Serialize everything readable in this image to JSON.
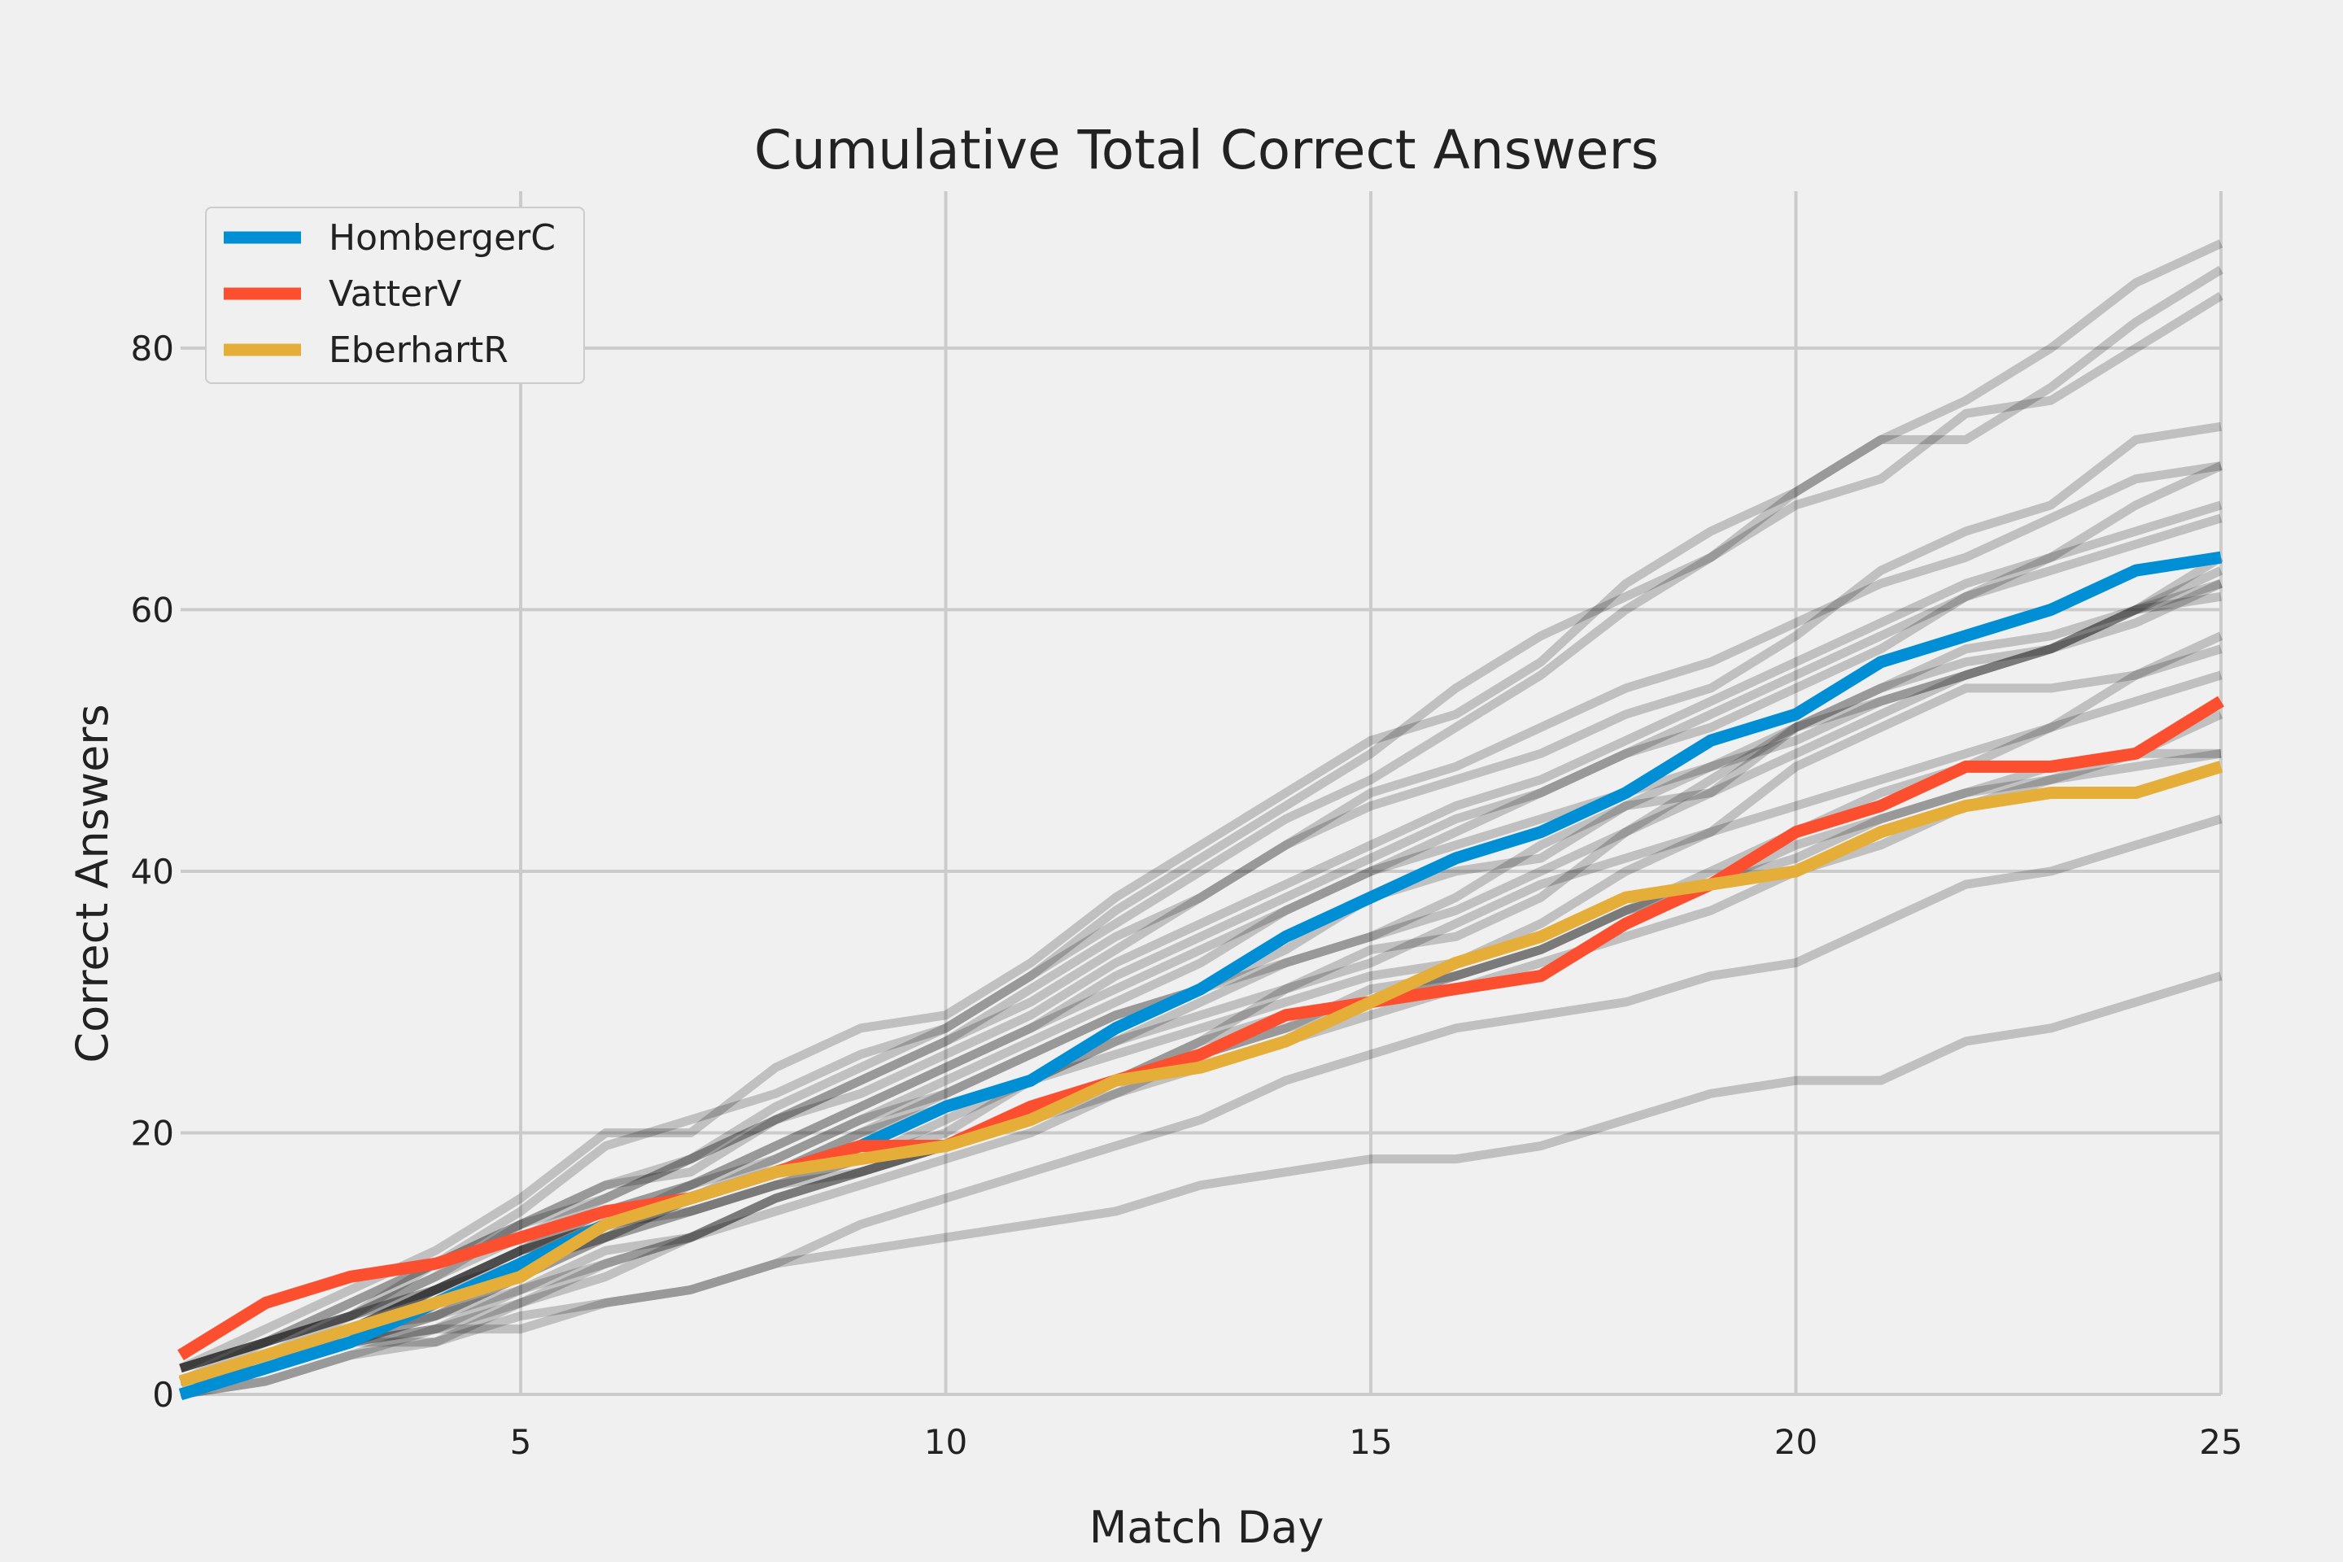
{
  "chart_data": {
    "type": "line",
    "title": "Cumulative Total Correct Answers",
    "xlabel": "Match Day",
    "ylabel": "Correct Answers",
    "xlim": [
      1,
      25
    ],
    "ylim": [
      0,
      92
    ],
    "xticks": [
      5,
      10,
      15,
      20,
      25
    ],
    "yticks": [
      0,
      20,
      40,
      60,
      80
    ],
    "grid": true,
    "legend_position": "top-left",
    "x": [
      1,
      2,
      3,
      4,
      5,
      6,
      7,
      8,
      9,
      10,
      11,
      12,
      13,
      14,
      15,
      16,
      17,
      18,
      19,
      20,
      21,
      22,
      23,
      24,
      25
    ],
    "series": [
      {
        "name": "HombergerC",
        "color": "#008fd5",
        "values": [
          0,
          2,
          4,
          7,
          10,
          13,
          15,
          17,
          19,
          22,
          24,
          28,
          31,
          35,
          38,
          41,
          43,
          46,
          50,
          52,
          56,
          58,
          60,
          63,
          64
        ]
      },
      {
        "name": "VatterV",
        "color": "#fc4f30",
        "values": [
          3,
          7,
          9,
          10,
          12,
          14,
          15,
          17,
          19,
          19,
          22,
          24,
          26,
          29,
          30,
          31,
          32,
          36,
          39,
          43,
          45,
          48,
          48,
          49,
          53
        ]
      },
      {
        "name": "EberhartR",
        "color": "#e5ae38",
        "values": [
          1,
          3,
          5,
          7,
          9,
          13,
          15,
          17,
          18,
          19,
          21,
          24,
          25,
          27,
          30,
          33,
          35,
          38,
          39,
          40,
          43,
          45,
          46,
          46,
          48
        ]
      }
    ],
    "background_series": [
      [
        2,
        5,
        8,
        11,
        15,
        20,
        20,
        25,
        28,
        29,
        33,
        38,
        42,
        46,
        50,
        52,
        56,
        62,
        66,
        69,
        73,
        73,
        77,
        82,
        86
      ],
      [
        1,
        4,
        7,
        10,
        14,
        19,
        21,
        23,
        26,
        28,
        32,
        37,
        41,
        45,
        49,
        54,
        58,
        61,
        64,
        69,
        73,
        76,
        80,
        85,
        88
      ],
      [
        2,
        4,
        6,
        9,
        12,
        15,
        18,
        22,
        25,
        28,
        32,
        36,
        40,
        44,
        47,
        51,
        55,
        60,
        64,
        68,
        70,
        75,
        76,
        80,
        84
      ],
      [
        1,
        3,
        6,
        9,
        13,
        16,
        18,
        21,
        24,
        27,
        30,
        34,
        38,
        42,
        45,
        47,
        49,
        52,
        54,
        58,
        63,
        66,
        68,
        73,
        74
      ],
      [
        2,
        4,
        6,
        10,
        13,
        16,
        17,
        21,
        24,
        27,
        31,
        35,
        38,
        42,
        46,
        48,
        51,
        54,
        56,
        59,
        62,
        64,
        67,
        70,
        71
      ],
      [
        0,
        2,
        5,
        8,
        11,
        14,
        16,
        19,
        22,
        25,
        28,
        32,
        35,
        38,
        41,
        44,
        46,
        49,
        51,
        54,
        57,
        61,
        64,
        68,
        71
      ],
      [
        2,
        4,
        7,
        10,
        13,
        15,
        18,
        21,
        23,
        26,
        29,
        33,
        36,
        39,
        42,
        45,
        47,
        50,
        53,
        56,
        59,
        62,
        64,
        66,
        68
      ],
      [
        1,
        3,
        5,
        8,
        11,
        14,
        16,
        18,
        21,
        24,
        27,
        30,
        33,
        37,
        40,
        43,
        46,
        49,
        52,
        55,
        58,
        61,
        63,
        65,
        67
      ],
      [
        1,
        3,
        5,
        8,
        11,
        13,
        16,
        19,
        22,
        25,
        28,
        31,
        34,
        37,
        40,
        42,
        44,
        46,
        48,
        50,
        53,
        55,
        57,
        60,
        63
      ],
      [
        2,
        4,
        6,
        8,
        10,
        12,
        15,
        18,
        21,
        23,
        26,
        29,
        31,
        33,
        35,
        37,
        40,
        43,
        47,
        51,
        54,
        57,
        58,
        60,
        62
      ],
      [
        1,
        2,
        5,
        8,
        11,
        13,
        15,
        17,
        20,
        23,
        26,
        29,
        31,
        34,
        38,
        40,
        41,
        45,
        46,
        51,
        53,
        55,
        57,
        60,
        61
      ],
      [
        0,
        2,
        4,
        6,
        9,
        12,
        14,
        16,
        18,
        21,
        24,
        27,
        30,
        33,
        35,
        38,
        42,
        45,
        48,
        51,
        54,
        56,
        57,
        60,
        64
      ],
      [
        1,
        3,
        5,
        6,
        9,
        12,
        14,
        16,
        18,
        20,
        24,
        27,
        29,
        31,
        34,
        35,
        38,
        43,
        46,
        49,
        52,
        55,
        57,
        59,
        62
      ],
      [
        0,
        2,
        4,
        5,
        8,
        11,
        12,
        15,
        17,
        19,
        21,
        24,
        27,
        31,
        33,
        36,
        39,
        41,
        43,
        45,
        47,
        49,
        51,
        55,
        58
      ],
      [
        1,
        3,
        5,
        7,
        10,
        12,
        15,
        17,
        20,
        22,
        24,
        26,
        28,
        30,
        32,
        33,
        36,
        40,
        43,
        48,
        51,
        54,
        54,
        55,
        57
      ],
      [
        2,
        4,
        6,
        8,
        11,
        13,
        14,
        16,
        17,
        19,
        21,
        23,
        26,
        28,
        31,
        32,
        34,
        37,
        40,
        43,
        46,
        48,
        51,
        53,
        55
      ],
      [
        1,
        2,
        4,
        6,
        8,
        10,
        12,
        15,
        17,
        19,
        21,
        24,
        26,
        28,
        30,
        32,
        34,
        37,
        39,
        42,
        44,
        46,
        48,
        49,
        49
      ],
      [
        0,
        1,
        3,
        4,
        7,
        10,
        12,
        14,
        16,
        18,
        20,
        23,
        25,
        27,
        29,
        31,
        33,
        35,
        37,
        40,
        42,
        45,
        47,
        49,
        52
      ],
      [
        0,
        1,
        3,
        5,
        7,
        9,
        12,
        15,
        17,
        19,
        21,
        24,
        27,
        29,
        30,
        32,
        34,
        37,
        39,
        41,
        44,
        46,
        47,
        48,
        49
      ],
      [
        0,
        2,
        4,
        4,
        6,
        7,
        8,
        10,
        13,
        15,
        17,
        19,
        21,
        24,
        26,
        28,
        29,
        30,
        32,
        33,
        36,
        39,
        40,
        42,
        44
      ],
      [
        0,
        2,
        4,
        5,
        5,
        7,
        8,
        10,
        11,
        12,
        13,
        14,
        16,
        17,
        18,
        18,
        19,
        21,
        23,
        24,
        24,
        27,
        28,
        30,
        32
      ]
    ]
  }
}
